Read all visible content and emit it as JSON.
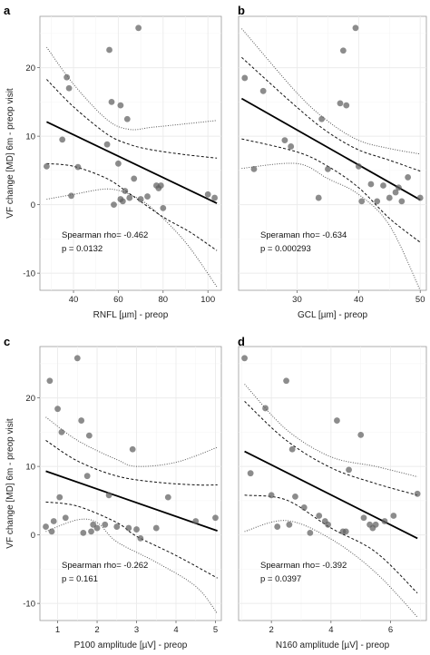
{
  "chart_data": [
    {
      "letter": "a",
      "type": "scatter",
      "xlabel": "RNFL [µm] - preop",
      "ylabel": "VF change [MD] 6m - preop visit",
      "xlim": [
        25,
        106
      ],
      "ylim": [
        -12.5,
        27.5
      ],
      "xticks": [
        40,
        60,
        80,
        100
      ],
      "yticks": [
        -10,
        0,
        10,
        20
      ],
      "x_tick_labels": [
        "40",
        "60",
        "80",
        "100"
      ],
      "y_tick_labels": [
        "-10",
        "0",
        "10",
        "20"
      ],
      "grid": true,
      "stats": [
        "Spearman rho= -0.462",
        "p = 0.0132"
      ],
      "points": [
        [
          28,
          5.6
        ],
        [
          35,
          9.5
        ],
        [
          37,
          18.6
        ],
        [
          38,
          17
        ],
        [
          39,
          1.3
        ],
        [
          42,
          5.5
        ],
        [
          55,
          8.8
        ],
        [
          56,
          22.6
        ],
        [
          57,
          15
        ],
        [
          58,
          0
        ],
        [
          60,
          6
        ],
        [
          61,
          14.5
        ],
        [
          61,
          0.8
        ],
        [
          62,
          0.5
        ],
        [
          63,
          2
        ],
        [
          64,
          12.5
        ],
        [
          65,
          1
        ],
        [
          67,
          3.8
        ],
        [
          69,
          25.8
        ],
        [
          70,
          0.8
        ],
        [
          73,
          1.2
        ],
        [
          77,
          2.8
        ],
        [
          78,
          2.4
        ],
        [
          79,
          2.8
        ],
        [
          80,
          -0.5
        ],
        [
          100,
          1.5
        ],
        [
          103,
          1
        ]
      ],
      "fit": [
        [
          28,
          12.1
        ],
        [
          104,
          0.2
        ]
      ],
      "ci_upper": [
        [
          28,
          18.3
        ],
        [
          40,
          14.3
        ],
        [
          55,
          10.3
        ],
        [
          65,
          8.8
        ],
        [
          75,
          8
        ],
        [
          90,
          7.3
        ],
        [
          104,
          6.8
        ]
      ],
      "ci_lower": [
        [
          28,
          6
        ],
        [
          40,
          5.6
        ],
        [
          55,
          3.8
        ],
        [
          65,
          1.6
        ],
        [
          80,
          -1.8
        ],
        [
          92,
          -4
        ],
        [
          104,
          -6.7
        ]
      ],
      "pi_upper": [
        [
          28,
          23
        ],
        [
          40,
          17.6
        ],
        [
          55,
          12.4
        ],
        [
          65,
          11
        ],
        [
          75,
          11.3
        ],
        [
          90,
          11.8
        ],
        [
          104,
          12.3
        ]
      ],
      "pi_lower": [
        [
          28,
          0.8
        ],
        [
          40,
          1.5
        ],
        [
          55,
          2.3
        ],
        [
          65,
          1.5
        ],
        [
          75,
          -0.5
        ],
        [
          90,
          -5.5
        ],
        [
          104,
          -12
        ]
      ]
    },
    {
      "letter": "b",
      "type": "scatter",
      "xlabel": "GCL [µm] - preop",
      "ylabel": "",
      "xlim": [
        20.5,
        51
      ],
      "ylim": [
        -12.5,
        27.5
      ],
      "xticks": [
        30,
        40,
        50
      ],
      "yticks": [
        -10,
        0,
        10,
        20
      ],
      "x_tick_labels": [
        "30",
        "40",
        "50"
      ],
      "y_tick_labels": [],
      "grid": true,
      "stats": [
        "Speraman rho= -0.634",
        "p = 0.000293"
      ],
      "points": [
        [
          21.5,
          18.5
        ],
        [
          23,
          5.2
        ],
        [
          24.5,
          16.6
        ],
        [
          28,
          9.4
        ],
        [
          29,
          8.5
        ],
        [
          33.5,
          1
        ],
        [
          34,
          12.5
        ],
        [
          35,
          5.2
        ],
        [
          37,
          14.8
        ],
        [
          37.5,
          22.5
        ],
        [
          38,
          14.5
        ],
        [
          39.5,
          25.8
        ],
        [
          40,
          5.6
        ],
        [
          40.5,
          0.5
        ],
        [
          42,
          3
        ],
        [
          43,
          0.5
        ],
        [
          44,
          2.8
        ],
        [
          45,
          1
        ],
        [
          46,
          1.8
        ],
        [
          46.5,
          2.5
        ],
        [
          47,
          0.5
        ],
        [
          48,
          4
        ],
        [
          50,
          1
        ]
      ],
      "fit": [
        [
          21,
          15.5
        ],
        [
          50,
          0.7
        ]
      ],
      "ci_upper": [
        [
          21,
          21.5
        ],
        [
          30,
          14.2
        ],
        [
          35,
          10.6
        ],
        [
          40,
          8
        ],
        [
          45,
          6.5
        ],
        [
          50,
          4.9
        ]
      ],
      "ci_lower": [
        [
          21,
          9.6
        ],
        [
          30,
          7.7
        ],
        [
          35,
          5.6
        ],
        [
          40,
          2.5
        ],
        [
          45,
          -2
        ],
        [
          50,
          -5.5
        ]
      ],
      "pi_upper": [
        [
          21,
          25.7
        ],
        [
          30,
          16.3
        ],
        [
          35,
          12.2
        ],
        [
          40,
          9.4
        ],
        [
          45,
          8.2
        ],
        [
          50,
          7.4
        ]
      ],
      "pi_lower": [
        [
          21,
          5.3
        ],
        [
          30,
          6
        ],
        [
          35,
          3.8
        ],
        [
          40,
          1.5
        ],
        [
          45,
          -3
        ],
        [
          50,
          -12.5
        ]
      ]
    },
    {
      "letter": "c",
      "type": "scatter",
      "xlabel": "P100 amplitude [µV] - preop",
      "ylabel": "VF change [MD] 6m - preop visit",
      "xlim": [
        0.55,
        5.15
      ],
      "ylim": [
        -12.5,
        27.5
      ],
      "xticks": [
        1,
        2,
        3,
        4,
        5
      ],
      "yticks": [
        -10,
        0,
        10,
        20
      ],
      "x_tick_labels": [
        "1",
        "2",
        "3",
        "4",
        "5"
      ],
      "y_tick_labels": [
        "-10",
        "0",
        "10",
        "20"
      ],
      "grid": true,
      "stats": [
        "Spearman rho= -0.262",
        "p = 0.161"
      ],
      "points": [
        [
          0.7,
          1.2
        ],
        [
          0.8,
          22.5
        ],
        [
          0.85,
          0.5
        ],
        [
          0.9,
          2
        ],
        [
          1,
          18.4
        ],
        [
          1.05,
          5.5
        ],
        [
          1.1,
          15
        ],
        [
          1.2,
          2.5
        ],
        [
          1.5,
          25.8
        ],
        [
          1.6,
          16.7
        ],
        [
          1.65,
          0.3
        ],
        [
          1.75,
          8.6
        ],
        [
          1.8,
          14.5
        ],
        [
          1.85,
          0.5
        ],
        [
          1.9,
          1.5
        ],
        [
          2,
          1
        ],
        [
          2.2,
          1.5
        ],
        [
          2.3,
          5.8
        ],
        [
          2.5,
          1.2
        ],
        [
          2.8,
          1
        ],
        [
          2.9,
          12.5
        ],
        [
          3,
          0.8
        ],
        [
          3.1,
          -0.5
        ],
        [
          3.5,
          1
        ],
        [
          3.8,
          5.5
        ],
        [
          4.5,
          2
        ],
        [
          5,
          2.5
        ]
      ],
      "fit": [
        [
          0.7,
          9.3
        ],
        [
          5.05,
          0.6
        ]
      ],
      "ci_upper": [
        [
          0.7,
          13.8
        ],
        [
          1.5,
          10.8
        ],
        [
          2.5,
          8.6
        ],
        [
          3.5,
          7.7
        ],
        [
          4.5,
          7.3
        ],
        [
          5.05,
          7.3
        ]
      ],
      "ci_lower": [
        [
          0.7,
          4.8
        ],
        [
          1.5,
          4.2
        ],
        [
          2.5,
          1.8
        ],
        [
          3,
          -0.2
        ],
        [
          4,
          -3
        ],
        [
          5.05,
          -6.3
        ]
      ],
      "pi_upper": [
        [
          0.7,
          17.2
        ],
        [
          1.5,
          13.8
        ],
        [
          2.5,
          11
        ],
        [
          3,
          10
        ],
        [
          4,
          10.6
        ],
        [
          5.05,
          12.8
        ]
      ],
      "pi_lower": [
        [
          0.7,
          0.5
        ],
        [
          1.5,
          2.2
        ],
        [
          2,
          1.8
        ],
        [
          2.5,
          -1
        ],
        [
          3.5,
          -4
        ],
        [
          4.5,
          -7.5
        ],
        [
          5.05,
          -11.5
        ]
      ]
    },
    {
      "letter": "d",
      "type": "scatter",
      "xlabel": "N160 amplitude [µV] - preop",
      "ylabel": "",
      "xlim": [
        0.9,
        7.2
      ],
      "ylim": [
        -12.5,
        27.5
      ],
      "xticks": [
        2,
        4,
        6
      ],
      "yticks": [
        -10,
        0,
        10,
        20
      ],
      "x_tick_labels": [
        "2",
        "4",
        "6"
      ],
      "y_tick_labels": [],
      "grid": true,
      "stats": [
        "Spearman rho= -0.392",
        "p = 0.0397"
      ],
      "points": [
        [
          1.1,
          25.8
        ],
        [
          1.3,
          9
        ],
        [
          1.8,
          18.5
        ],
        [
          2,
          5.8
        ],
        [
          2.2,
          1.2
        ],
        [
          2.5,
          22.5
        ],
        [
          2.6,
          1.5
        ],
        [
          2.7,
          12.5
        ],
        [
          2.8,
          5.6
        ],
        [
          3.1,
          4
        ],
        [
          3.3,
          0.3
        ],
        [
          3.6,
          2.8
        ],
        [
          3.8,
          2
        ],
        [
          3.9,
          1.5
        ],
        [
          4.2,
          16.7
        ],
        [
          4.4,
          0.5
        ],
        [
          4.5,
          0.5
        ],
        [
          4.6,
          9.5
        ],
        [
          5,
          14.6
        ],
        [
          5.1,
          2.5
        ],
        [
          5.3,
          1.5
        ],
        [
          5.4,
          1
        ],
        [
          5.5,
          1.5
        ],
        [
          5.8,
          2
        ],
        [
          6.1,
          2.8
        ],
        [
          6.9,
          6
        ]
      ],
      "fit": [
        [
          1.1,
          12.2
        ],
        [
          6.9,
          -0.5
        ]
      ],
      "ci_upper": [
        [
          1.1,
          19.5
        ],
        [
          2.5,
          13.8
        ],
        [
          4,
          9.8
        ],
        [
          5.5,
          7.5
        ],
        [
          6.9,
          5.8
        ]
      ],
      "ci_lower": [
        [
          1.1,
          5.8
        ],
        [
          2.5,
          5.1
        ],
        [
          4,
          1
        ],
        [
          5.5,
          -2.5
        ],
        [
          6.9,
          -8.5
        ]
      ],
      "pi_upper": [
        [
          1.1,
          22
        ],
        [
          2.5,
          15.4
        ],
        [
          4,
          11.4
        ],
        [
          5.5,
          10
        ],
        [
          6.9,
          8.5
        ]
      ],
      "pi_lower": [
        [
          1.1,
          0.5
        ],
        [
          2.5,
          2.1
        ],
        [
          4,
          -0.6
        ],
        [
          5.5,
          -5.5
        ],
        [
          6.9,
          -12
        ]
      ]
    }
  ]
}
